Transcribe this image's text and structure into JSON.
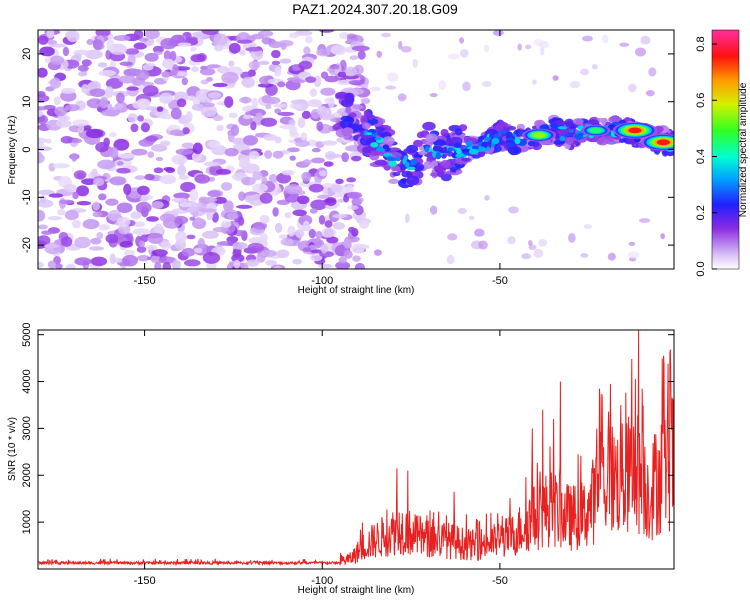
{
  "title": "PAZ1.2024.307.20.18.G09",
  "colors": {
    "snr_line": "#e8201f",
    "axis": "#000000"
  },
  "chart_data": [
    {
      "type": "heatmap",
      "xlabel": "Height of straight line (km)",
      "ylabel": "Frequency (Hz)",
      "xlim": [
        -180,
        -1
      ],
      "ylim": [
        -25,
        25
      ],
      "x_ticks": [
        -150,
        -100,
        -50
      ],
      "y_ticks": [
        -20,
        -10,
        0,
        10,
        20
      ],
      "colorbar": {
        "label": "Normalized spectral amplitude",
        "range": [
          0.0,
          0.85
        ],
        "ticks": [
          "0.0",
          "0.2",
          "0.4",
          "0.6",
          "0.8"
        ],
        "colormap": "rainbow (white-purple-blue-cyan-green-yellow-red-pink)"
      },
      "ridge": {
        "description": "signal concentrated near 0 Hz for heights above about -95 km",
        "points": [
          {
            "x": -95,
            "y": 8
          },
          {
            "x": -90,
            "y": 5
          },
          {
            "x": -85,
            "y": 2
          },
          {
            "x": -80,
            "y": -2
          },
          {
            "x": -75,
            "y": -3
          },
          {
            "x": -70,
            "y": 0
          },
          {
            "x": -65,
            "y": -1
          },
          {
            "x": -60,
            "y": 0
          },
          {
            "x": -55,
            "y": 1
          },
          {
            "x": -50,
            "y": 3
          },
          {
            "x": -45,
            "y": 2
          },
          {
            "x": -40,
            "y": 3
          },
          {
            "x": -35,
            "y": 4
          },
          {
            "x": -30,
            "y": 3
          },
          {
            "x": -25,
            "y": 4
          },
          {
            "x": -20,
            "y": 4
          },
          {
            "x": -15,
            "y": 4
          },
          {
            "x": -10,
            "y": 3
          },
          {
            "x": -5,
            "y": 2
          },
          {
            "x": -1,
            "y": 1
          }
        ],
        "peaks": [
          {
            "x": -39,
            "y": 3,
            "amplitude": 0.55
          },
          {
            "x": -23,
            "y": 4,
            "amplitude": 0.5
          },
          {
            "x": -12,
            "y": 4,
            "amplitude": 0.8
          },
          {
            "x": -4,
            "y": 1.5,
            "amplitude": 0.8
          }
        ]
      }
    },
    {
      "type": "line",
      "xlabel": "Height of straight line (km)",
      "ylabel": "SNR (10 * v/v)",
      "xlim": [
        -180,
        -1
      ],
      "ylim": [
        0,
        5100
      ],
      "x_ticks": [
        -150,
        -100,
        -50
      ],
      "y_ticks": [
        1000,
        2000,
        3000,
        4000,
        5000
      ],
      "series": [
        {
          "envelope": [
            {
              "x": -180,
              "y": 120
            },
            {
              "x": -150,
              "y": 130
            },
            {
              "x": -120,
              "y": 130
            },
            {
              "x": -100,
              "y": 150
            },
            {
              "x": -92,
              "y": 300
            },
            {
              "x": -88,
              "y": 700
            },
            {
              "x": -82,
              "y": 1000
            },
            {
              "x": -78,
              "y": 1200
            },
            {
              "x": -72,
              "y": 900
            },
            {
              "x": -65,
              "y": 850
            },
            {
              "x": -58,
              "y": 700
            },
            {
              "x": -52,
              "y": 800
            },
            {
              "x": -46,
              "y": 1000
            },
            {
              "x": -42,
              "y": 1400
            },
            {
              "x": -36,
              "y": 1800
            },
            {
              "x": -30,
              "y": 1500
            },
            {
              "x": -26,
              "y": 1600
            },
            {
              "x": -20,
              "y": 2700
            },
            {
              "x": -15,
              "y": 2600
            },
            {
              "x": -12,
              "y": 3000
            },
            {
              "x": -8,
              "y": 2200
            },
            {
              "x": -5,
              "y": 2800
            },
            {
              "x": -1,
              "y": 3200
            }
          ],
          "spikes": [
            {
              "x": -79,
              "y": 2150
            },
            {
              "x": -76,
              "y": 2100
            },
            {
              "x": -63,
              "y": 1650
            },
            {
              "x": -41,
              "y": 3000
            },
            {
              "x": -38,
              "y": 3400
            },
            {
              "x": -35,
              "y": 3200
            },
            {
              "x": -33,
              "y": 4000
            },
            {
              "x": -22,
              "y": 3850
            },
            {
              "x": -19,
              "y": 3950
            },
            {
              "x": -16,
              "y": 3500
            },
            {
              "x": -11,
              "y": 5100
            },
            {
              "x": -4,
              "y": 4550
            },
            {
              "x": -2,
              "y": 4000
            }
          ]
        }
      ]
    }
  ]
}
